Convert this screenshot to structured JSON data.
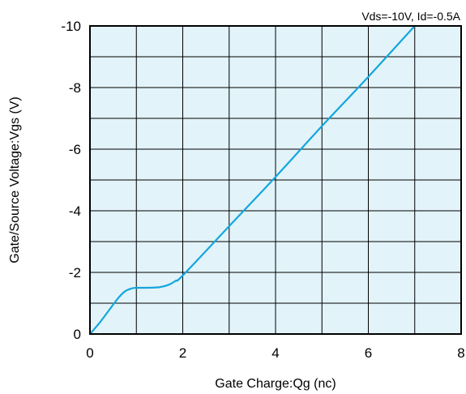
{
  "chart_data": {
    "type": "line",
    "title": "",
    "annotation": "Vds=-10V, Id=-0.5A",
    "xlabel": "Gate Charge:Qg (nc)",
    "ylabel": "Gate/Source Voltage:Vgs (V)",
    "xlim": [
      0,
      8
    ],
    "ylim": [
      0,
      -10
    ],
    "x_ticks": [
      "0",
      "2",
      "4",
      "6",
      "8"
    ],
    "y_ticks": [
      "0",
      "-2",
      "-4",
      "-6",
      "-8",
      "-10"
    ],
    "grid": true,
    "colors": {
      "plot_background": "#e2f3f9",
      "line": "#14a6dc",
      "grid": "#000000"
    },
    "series": [
      {
        "x": [
          0,
          0.2,
          0.4,
          0.6,
          0.75,
          0.9,
          1.0,
          1.2,
          1.5,
          1.7,
          1.85,
          2.0,
          3.0,
          4.0,
          5.0,
          6.0,
          7.0
        ],
        "y": [
          0,
          -0.35,
          -0.75,
          -1.15,
          -1.38,
          -1.48,
          -1.5,
          -1.5,
          -1.52,
          -1.6,
          -1.73,
          -1.9,
          -3.5,
          -5.1,
          -6.75,
          -8.35,
          -10.0
        ]
      }
    ]
  }
}
